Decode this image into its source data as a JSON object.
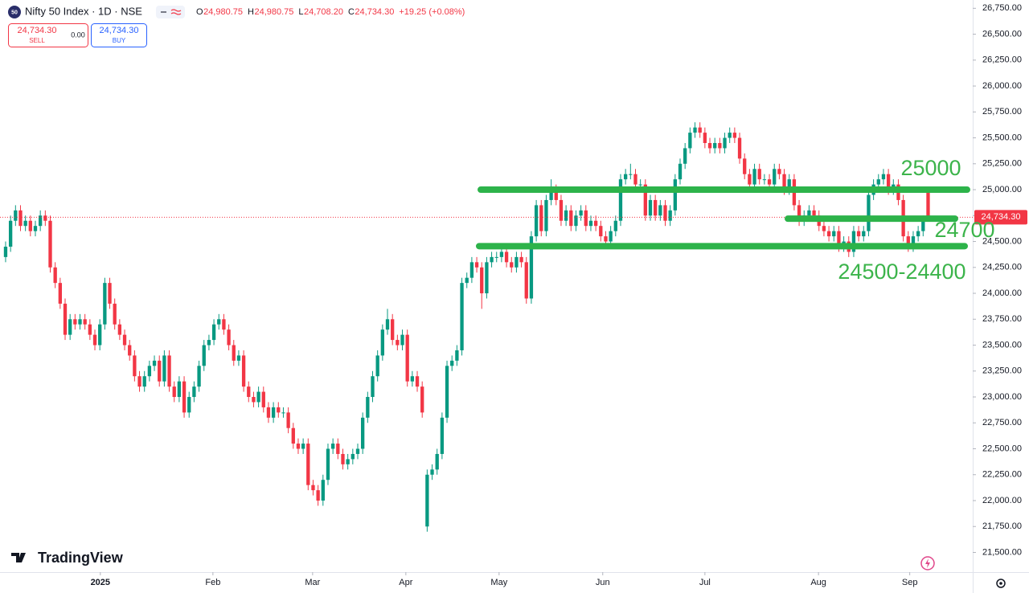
{
  "header": {
    "symbol": "Nifty 50 Index · 1D · NSE",
    "badge": "50",
    "ohlc": [
      {
        "key": "O",
        "value": "24,980.75"
      },
      {
        "key": "H",
        "value": "24,980.75"
      },
      {
        "key": "L",
        "value": "24,708.20"
      },
      {
        "key": "C",
        "value": "24,734.30"
      }
    ],
    "change": "+19.25 (+0.08%)"
  },
  "trade": {
    "sell_price": "24,734.30",
    "sell": "SELL",
    "spread": "0.00",
    "buy_price": "24,734.30",
    "buy": "BUY"
  },
  "brand": "TradingView",
  "chart_data": {
    "type": "candlestick",
    "up_color": "#089981",
    "down_color": "#f23645",
    "grid": false,
    "ylim": [
      21310,
      26830
    ],
    "yticks": [
      {
        "value": 21500,
        "label": "21,500.00"
      },
      {
        "value": 21750,
        "label": "21,750.00"
      },
      {
        "value": 22000,
        "label": "22,000.00"
      },
      {
        "value": 22250,
        "label": "22,250.00"
      },
      {
        "value": 22500,
        "label": "22,500.00"
      },
      {
        "value": 22750,
        "label": "22,750.00"
      },
      {
        "value": 23000,
        "label": "23,000.00"
      },
      {
        "value": 23250,
        "label": "23,250.00"
      },
      {
        "value": 23500,
        "label": "23,500.00"
      },
      {
        "value": 23750,
        "label": "23,750.00"
      },
      {
        "value": 24000,
        "label": "24,000.00"
      },
      {
        "value": 24250,
        "label": "24,250.00"
      },
      {
        "value": 24500,
        "label": "24,500.00"
      },
      {
        "value": 24750,
        "label": "24,750.00"
      },
      {
        "value": 25000,
        "label": "25,000.00"
      },
      {
        "value": 25250,
        "label": "25,250.00"
      },
      {
        "value": 25500,
        "label": "25,500.00"
      },
      {
        "value": 25750,
        "label": "25,750.00"
      },
      {
        "value": 26000,
        "label": "26,000.00"
      },
      {
        "value": 26250,
        "label": "26,250.00"
      },
      {
        "value": 26500,
        "label": "26,500.00"
      },
      {
        "value": 26750,
        "label": "26,750.00"
      }
    ],
    "xlim": [
      -1.13,
      195
    ],
    "xticks": [
      {
        "value": 19.1,
        "label": "2025"
      },
      {
        "value": 41.8,
        "label": "Feb"
      },
      {
        "value": 61.9,
        "label": "Mar"
      },
      {
        "value": 80.7,
        "label": "Apr"
      },
      {
        "value": 99.5,
        "label": "May"
      },
      {
        "value": 120.4,
        "label": "Jun"
      },
      {
        "value": 141,
        "label": "Jul"
      },
      {
        "value": 163.9,
        "label": "Aug"
      },
      {
        "value": 182.3,
        "label": "Sep"
      }
    ],
    "last_price": {
      "value": 24734.3,
      "label": "24,734.30",
      "color": "#f23645"
    },
    "levels": [
      {
        "value": 25000,
        "label": "25000"
      },
      {
        "value": 24720,
        "label": "24700"
      },
      {
        "value": 24455,
        "label": "24500-24400"
      }
    ],
    "level_color": "#2db34a",
    "values": [
      [
        24350,
        24500,
        24300,
        24450
      ],
      [
        24450,
        24750,
        24400,
        24700
      ],
      [
        24700,
        24850,
        24650,
        24800
      ],
      [
        24800,
        24850,
        24600,
        24650
      ],
      [
        24650,
        24750,
        24600,
        24700
      ],
      [
        24700,
        24750,
        24550,
        24600
      ],
      [
        24600,
        24700,
        24550,
        24650
      ],
      [
        24650,
        24800,
        24600,
        24750
      ],
      [
        24750,
        24800,
        24650,
        24700
      ],
      [
        24700,
        24750,
        24200,
        24250
      ],
      [
        24250,
        24300,
        24050,
        24100
      ],
      [
        24100,
        24150,
        23850,
        23900
      ],
      [
        23900,
        23950,
        23550,
        23600
      ],
      [
        23600,
        23800,
        23550,
        23750
      ],
      [
        23750,
        23800,
        23650,
        23700
      ],
      [
        23700,
        23800,
        23650,
        23750
      ],
      [
        23750,
        23800,
        23650,
        23700
      ],
      [
        23700,
        23750,
        23550,
        23600
      ],
      [
        23600,
        23650,
        23450,
        23500
      ],
      [
        23500,
        23750,
        23450,
        23700
      ],
      [
        23700,
        24150,
        23650,
        24100
      ],
      [
        24100,
        24150,
        23850,
        23900
      ],
      [
        23900,
        23950,
        23650,
        23700
      ],
      [
        23700,
        23750,
        23550,
        23600
      ],
      [
        23600,
        23650,
        23450,
        23500
      ],
      [
        23500,
        23550,
        23350,
        23400
      ],
      [
        23400,
        23450,
        23150,
        23200
      ],
      [
        23200,
        23250,
        23050,
        23100
      ],
      [
        23100,
        23250,
        23050,
        23200
      ],
      [
        23200,
        23350,
        23150,
        23300
      ],
      [
        23300,
        23400,
        23250,
        23350
      ],
      [
        23350,
        23400,
        23100,
        23150
      ],
      [
        23150,
        23450,
        23100,
        23400
      ],
      [
        23400,
        23450,
        23050,
        23100
      ],
      [
        23100,
        23150,
        22950,
        23000
      ],
      [
        23000,
        23200,
        22950,
        23150
      ],
      [
        23150,
        23200,
        22800,
        22850
      ],
      [
        22850,
        23050,
        22800,
        23000
      ],
      [
        23000,
        23150,
        22950,
        23100
      ],
      [
        23100,
        23350,
        23050,
        23300
      ],
      [
        23300,
        23550,
        23250,
        23500
      ],
      [
        23500,
        23600,
        23450,
        23550
      ],
      [
        23550,
        23750,
        23500,
        23700
      ],
      [
        23700,
        23800,
        23650,
        23750
      ],
      [
        23750,
        23800,
        23600,
        23650
      ],
      [
        23650,
        23700,
        23450,
        23500
      ],
      [
        23500,
        23550,
        23300,
        23350
      ],
      [
        23350,
        23450,
        23300,
        23400
      ],
      [
        23400,
        23450,
        23050,
        23100
      ],
      [
        23100,
        23150,
        22950,
        23000
      ],
      [
        23000,
        23050,
        22900,
        22950
      ],
      [
        22950,
        23100,
        22900,
        23050
      ],
      [
        23050,
        23100,
        22850,
        22900
      ],
      [
        22900,
        22950,
        22750,
        22800
      ],
      [
        22800,
        22950,
        22750,
        22900
      ],
      [
        22900,
        22950,
        22800,
        22850
      ],
      [
        22850,
        22900,
        22800,
        22850
      ],
      [
        22850,
        22900,
        22650,
        22700
      ],
      [
        22700,
        22750,
        22500,
        22550
      ],
      [
        22550,
        22600,
        22450,
        22500
      ],
      [
        22500,
        22600,
        22450,
        22550
      ],
      [
        22550,
        22600,
        22100,
        22150
      ],
      [
        22150,
        22200,
        22050,
        22100
      ],
      [
        22100,
        22150,
        21950,
        22000
      ],
      [
        22000,
        22250,
        21950,
        22200
      ],
      [
        22200,
        22550,
        22150,
        22500
      ],
      [
        22500,
        22600,
        22450,
        22550
      ],
      [
        22550,
        22600,
        22400,
        22450
      ],
      [
        22450,
        22500,
        22300,
        22350
      ],
      [
        22350,
        22450,
        22300,
        22400
      ],
      [
        22400,
        22500,
        22350,
        22450
      ],
      [
        22450,
        22550,
        22400,
        22500
      ],
      [
        22500,
        22850,
        22450,
        22800
      ],
      [
        22800,
        23050,
        22750,
        23000
      ],
      [
        23000,
        23250,
        22950,
        23200
      ],
      [
        23200,
        23450,
        23150,
        23400
      ],
      [
        23400,
        23700,
        23350,
        23650
      ],
      [
        23650,
        23850,
        23600,
        23750
      ],
      [
        23750,
        23800,
        23500,
        23550
      ],
      [
        23550,
        23600,
        23450,
        23500
      ],
      [
        23500,
        23650,
        23450,
        23600
      ],
      [
        23600,
        23650,
        23100,
        23150
      ],
      [
        23150,
        23250,
        23100,
        23200
      ],
      [
        23200,
        23250,
        23050,
        23100
      ],
      [
        23100,
        23150,
        22800,
        22850
      ],
      [
        21750,
        22300,
        21700,
        22250
      ],
      [
        22250,
        22350,
        22200,
        22300
      ],
      [
        22300,
        22500,
        22250,
        22450
      ],
      [
        22450,
        22850,
        22400,
        22800
      ],
      [
        22800,
        23350,
        22750,
        23300
      ],
      [
        23300,
        23400,
        23250,
        23350
      ],
      [
        23350,
        23500,
        23300,
        23450
      ],
      [
        23450,
        24150,
        23400,
        24100
      ],
      [
        24100,
        24200,
        24050,
        24150
      ],
      [
        24150,
        24350,
        24100,
        24300
      ],
      [
        24300,
        24350,
        24200,
        24250
      ],
      [
        24250,
        24300,
        23850,
        24000
      ],
      [
        24000,
        24350,
        23950,
        24300
      ],
      [
        24300,
        24400,
        24250,
        24350
      ],
      [
        24350,
        24400,
        24300,
        24350
      ],
      [
        24350,
        24450,
        24300,
        24400
      ],
      [
        24400,
        24450,
        24250,
        24300
      ],
      [
        24300,
        24350,
        24200,
        24250
      ],
      [
        24250,
        24400,
        24200,
        24350
      ],
      [
        24350,
        24400,
        24250,
        24300
      ],
      [
        24300,
        24350,
        23900,
        23950
      ],
      [
        23950,
        24600,
        23900,
        24550
      ],
      [
        24550,
        24900,
        24500,
        24850
      ],
      [
        24850,
        24900,
        24550,
        24600
      ],
      [
        24600,
        24950,
        24550,
        24900
      ],
      [
        24900,
        25100,
        24850,
        25000
      ],
      [
        25000,
        25050,
        24850,
        24900
      ],
      [
        24900,
        24950,
        24650,
        24700
      ],
      [
        24700,
        24850,
        24650,
        24800
      ],
      [
        24800,
        24850,
        24600,
        24650
      ],
      [
        24650,
        24800,
        24600,
        24750
      ],
      [
        24750,
        24850,
        24700,
        24800
      ],
      [
        24800,
        24850,
        24600,
        24650
      ],
      [
        24650,
        24750,
        24600,
        24700
      ],
      [
        24700,
        24750,
        24600,
        24650
      ],
      [
        24650,
        24700,
        24500,
        24550
      ],
      [
        24550,
        24600,
        24450,
        24500
      ],
      [
        24500,
        24650,
        24450,
        24600
      ],
      [
        24600,
        24750,
        24550,
        24700
      ],
      [
        24700,
        25150,
        24650,
        25100
      ],
      [
        25100,
        25200,
        25050,
        25150
      ],
      [
        25150,
        25250,
        25100,
        25150
      ],
      [
        25150,
        25200,
        25000,
        25050
      ],
      [
        25050,
        25100,
        25000,
        25050
      ],
      [
        25050,
        25100,
        24700,
        24750
      ],
      [
        24750,
        24950,
        24700,
        24900
      ],
      [
        24900,
        24950,
        24700,
        24750
      ],
      [
        24750,
        24900,
        24700,
        24850
      ],
      [
        24850,
        24900,
        24650,
        24700
      ],
      [
        24700,
        24850,
        24650,
        24800
      ],
      [
        24800,
        25150,
        24750,
        25100
      ],
      [
        25100,
        25300,
        25050,
        25250
      ],
      [
        25250,
        25450,
        25200,
        25400
      ],
      [
        25400,
        25600,
        25350,
        25550
      ],
      [
        25550,
        25650,
        25500,
        25600
      ],
      [
        25600,
        25650,
        25500,
        25550
      ],
      [
        25550,
        25600,
        25400,
        25450
      ],
      [
        25450,
        25500,
        25350,
        25400
      ],
      [
        25400,
        25500,
        25350,
        25450
      ],
      [
        25450,
        25500,
        25350,
        25400
      ],
      [
        25400,
        25550,
        25350,
        25500
      ],
      [
        25500,
        25600,
        25450,
        25550
      ],
      [
        25550,
        25600,
        25450,
        25500
      ],
      [
        25500,
        25550,
        25250,
        25300
      ],
      [
        25300,
        25350,
        25100,
        25150
      ],
      [
        25150,
        25200,
        25000,
        25050
      ],
      [
        25050,
        25250,
        25000,
        25200
      ],
      [
        25200,
        25250,
        25050,
        25100
      ],
      [
        25100,
        25150,
        25050,
        25100
      ],
      [
        25100,
        25150,
        25000,
        25050
      ],
      [
        25050,
        25250,
        25000,
        25200
      ],
      [
        25200,
        25250,
        25100,
        25150
      ],
      [
        25150,
        25200,
        24950,
        25000
      ],
      [
        25000,
        25150,
        24950,
        25100
      ],
      [
        25100,
        25150,
        24800,
        24850
      ],
      [
        24850,
        24900,
        24650,
        24700
      ],
      [
        24700,
        24800,
        24650,
        24750
      ],
      [
        24750,
        24850,
        24700,
        24800
      ],
      [
        24800,
        24850,
        24700,
        24750
      ],
      [
        24750,
        24800,
        24600,
        24650
      ],
      [
        24650,
        24700,
        24550,
        24600
      ],
      [
        24600,
        24650,
        24500,
        24550
      ],
      [
        24550,
        24650,
        24500,
        24600
      ],
      [
        24600,
        24650,
        24400,
        24450
      ],
      [
        24450,
        24550,
        24400,
        24500
      ],
      [
        24500,
        24550,
        24350,
        24400
      ],
      [
        24400,
        24650,
        24350,
        24600
      ],
      [
        24600,
        24650,
        24500,
        24550
      ],
      [
        24550,
        24650,
        24500,
        24600
      ],
      [
        24600,
        25000,
        24550,
        24950
      ],
      [
        24950,
        25100,
        24900,
        25050
      ],
      [
        25050,
        25150,
        25000,
        25100
      ],
      [
        25100,
        25200,
        25050,
        25150
      ],
      [
        25150,
        25200,
        24950,
        25000
      ],
      [
        25000,
        25100,
        24950,
        25050
      ],
      [
        25050,
        25100,
        24850,
        24900
      ],
      [
        24900,
        24950,
        24500,
        24550
      ],
      [
        24550,
        24600,
        24400,
        24450
      ],
      [
        24450,
        24600,
        24400,
        24550
      ],
      [
        24550,
        24650,
        24500,
        24600
      ],
      [
        24600,
        24750,
        24550,
        24700
      ],
      [
        24980.75,
        24980.75,
        24708.2,
        24734.3
      ]
    ]
  }
}
